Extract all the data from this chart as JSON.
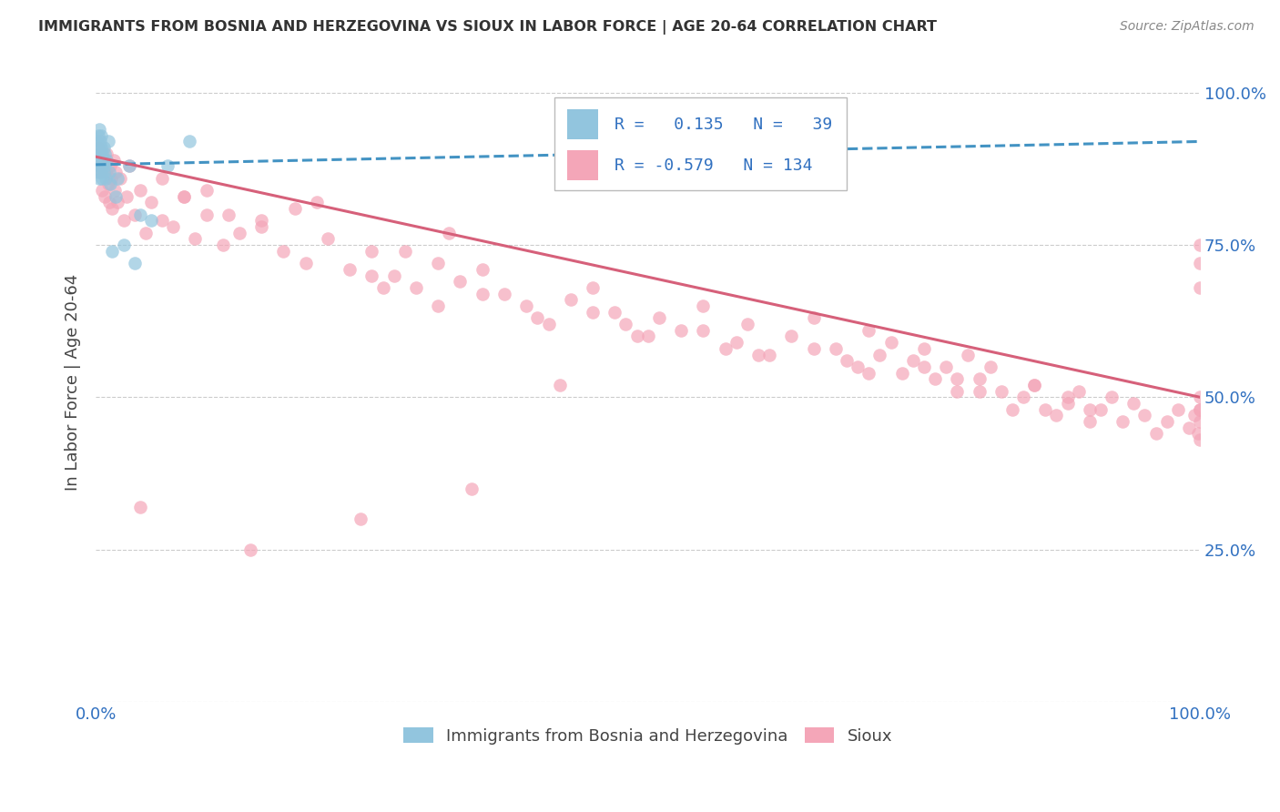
{
  "title": "IMMIGRANTS FROM BOSNIA AND HERZEGOVINA VS SIOUX IN LABOR FORCE | AGE 20-64 CORRELATION CHART",
  "source": "Source: ZipAtlas.com",
  "ylabel": "In Labor Force | Age 20-64",
  "r_bosnia": 0.135,
  "n_bosnia": 39,
  "r_sioux": -0.579,
  "n_sioux": 134,
  "color_bosnia": "#92c5de",
  "color_sioux": "#f4a6b8",
  "line_color_bosnia": "#4393c3",
  "line_color_sioux": "#d6607a",
  "background_color": "#ffffff",
  "grid_color": "#cccccc",
  "axis_label_color": "#3070c0",
  "title_color": "#333333",
  "xlim": [
    0.0,
    1.0
  ],
  "ylim": [
    0.0,
    1.05
  ],
  "bosnia_x": [
    0.001,
    0.001,
    0.002,
    0.002,
    0.002,
    0.003,
    0.003,
    0.003,
    0.003,
    0.004,
    0.004,
    0.004,
    0.005,
    0.005,
    0.005,
    0.005,
    0.006,
    0.006,
    0.006,
    0.007,
    0.007,
    0.007,
    0.008,
    0.008,
    0.009,
    0.01,
    0.011,
    0.012,
    0.013,
    0.015,
    0.018,
    0.02,
    0.025,
    0.03,
    0.035,
    0.04,
    0.05,
    0.065,
    0.085
  ],
  "bosnia_y": [
    0.88,
    0.92,
    0.9,
    0.87,
    0.93,
    0.89,
    0.91,
    0.86,
    0.94,
    0.9,
    0.88,
    0.92,
    0.87,
    0.91,
    0.89,
    0.93,
    0.88,
    0.9,
    0.86,
    0.91,
    0.89,
    0.87,
    0.9,
    0.88,
    0.86,
    0.89,
    0.92,
    0.87,
    0.85,
    0.74,
    0.83,
    0.86,
    0.75,
    0.88,
    0.72,
    0.8,
    0.79,
    0.88,
    0.92
  ],
  "sioux_x": [
    0.002,
    0.003,
    0.005,
    0.006,
    0.007,
    0.008,
    0.009,
    0.01,
    0.011,
    0.012,
    0.013,
    0.014,
    0.015,
    0.016,
    0.017,
    0.018,
    0.02,
    0.022,
    0.025,
    0.028,
    0.03,
    0.035,
    0.04,
    0.045,
    0.05,
    0.06,
    0.07,
    0.08,
    0.09,
    0.1,
    0.115,
    0.13,
    0.15,
    0.17,
    0.19,
    0.21,
    0.23,
    0.25,
    0.27,
    0.29,
    0.31,
    0.33,
    0.35,
    0.37,
    0.39,
    0.41,
    0.43,
    0.45,
    0.47,
    0.49,
    0.51,
    0.53,
    0.55,
    0.57,
    0.59,
    0.61,
    0.63,
    0.65,
    0.67,
    0.69,
    0.7,
    0.71,
    0.72,
    0.73,
    0.74,
    0.75,
    0.76,
    0.77,
    0.78,
    0.79,
    0.8,
    0.81,
    0.82,
    0.83,
    0.84,
    0.85,
    0.86,
    0.87,
    0.88,
    0.89,
    0.9,
    0.91,
    0.92,
    0.93,
    0.94,
    0.95,
    0.96,
    0.97,
    0.98,
    0.99,
    0.995,
    0.998,
    1.0,
    1.0,
    1.0,
    1.0,
    1.0,
    1.0,
    1.0,
    1.0,
    0.42,
    0.18,
    0.32,
    0.28,
    0.25,
    0.35,
    0.45,
    0.55,
    0.65,
    0.75,
    0.85,
    0.1,
    0.15,
    0.2,
    0.26,
    0.31,
    0.48,
    0.58,
    0.68,
    0.78,
    0.88,
    0.06,
    0.12,
    0.08,
    0.4,
    0.5,
    0.6,
    0.7,
    0.8,
    0.9,
    0.04,
    0.14,
    0.24,
    0.34
  ],
  "sioux_y": [
    0.91,
    0.88,
    0.87,
    0.84,
    0.89,
    0.83,
    0.87,
    0.9,
    0.85,
    0.82,
    0.88,
    0.86,
    0.81,
    0.89,
    0.84,
    0.87,
    0.82,
    0.86,
    0.79,
    0.83,
    0.88,
    0.8,
    0.84,
    0.77,
    0.82,
    0.79,
    0.78,
    0.83,
    0.76,
    0.8,
    0.75,
    0.77,
    0.79,
    0.74,
    0.72,
    0.76,
    0.71,
    0.74,
    0.7,
    0.68,
    0.72,
    0.69,
    0.71,
    0.67,
    0.65,
    0.62,
    0.66,
    0.68,
    0.64,
    0.6,
    0.63,
    0.61,
    0.65,
    0.58,
    0.62,
    0.57,
    0.6,
    0.63,
    0.58,
    0.55,
    0.61,
    0.57,
    0.59,
    0.54,
    0.56,
    0.58,
    0.53,
    0.55,
    0.51,
    0.57,
    0.53,
    0.55,
    0.51,
    0.48,
    0.5,
    0.52,
    0.48,
    0.47,
    0.49,
    0.51,
    0.46,
    0.48,
    0.5,
    0.46,
    0.49,
    0.47,
    0.44,
    0.46,
    0.48,
    0.45,
    0.47,
    0.44,
    0.46,
    0.43,
    0.48,
    0.5,
    0.72,
    0.68,
    0.75,
    0.48,
    0.52,
    0.81,
    0.77,
    0.74,
    0.7,
    0.67,
    0.64,
    0.61,
    0.58,
    0.55,
    0.52,
    0.84,
    0.78,
    0.82,
    0.68,
    0.65,
    0.62,
    0.59,
    0.56,
    0.53,
    0.5,
    0.86,
    0.8,
    0.83,
    0.63,
    0.6,
    0.57,
    0.54,
    0.51,
    0.48,
    0.32,
    0.25,
    0.3,
    0.35
  ],
  "trend_line_x": [
    0.0,
    1.0
  ],
  "bosnia_trend_y": [
    0.882,
    0.92
  ],
  "sioux_trend_y_start": 0.895,
  "sioux_trend_y_end": 0.5
}
